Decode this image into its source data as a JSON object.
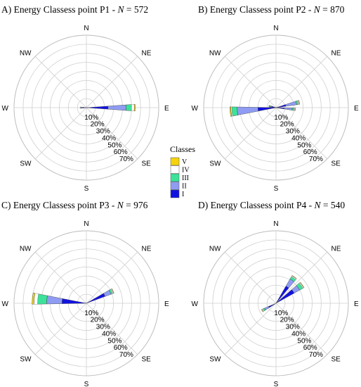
{
  "chart_data": {
    "type": "wind-rose",
    "directions": [
      "N",
      "NE",
      "E",
      "SE",
      "S",
      "SW",
      "W",
      "NW"
    ],
    "radial_ticks": [
      "10%",
      "20%",
      "30%",
      "40%",
      "50%",
      "60%",
      "70%"
    ],
    "radial_max": 80,
    "legend": {
      "title": "Classes",
      "classes": [
        {
          "label": "V",
          "color": "#f5d20c"
        },
        {
          "label": "IV",
          "color": "#ffffff"
        },
        {
          "label": "III",
          "color": "#3ce29a"
        },
        {
          "label": "II",
          "color": "#8f9cf2"
        },
        {
          "label": "I",
          "color": "#1212e0"
        }
      ]
    },
    "panels": [
      {
        "title_prefix": "A) Energy Classess point P1 - ",
        "title_n_sym": "N",
        "title_n_val": " = 572",
        "bins": [
          {
            "deg": 90,
            "width": 8,
            "I": 24,
            "II": 44,
            "III": 50,
            "IV": 53,
            "V": 54
          },
          {
            "deg": 270,
            "width": 14,
            "I": 4,
            "II": 6,
            "III": 6.5,
            "IV": 7,
            "V": 7
          }
        ]
      },
      {
        "title_prefix": "B) Energy Classess point P2 - ",
        "title_n_sym": "N",
        "title_n_val": " = 870",
        "bins": [
          {
            "deg": 77,
            "width": 10,
            "I": 11,
            "II": 23,
            "III": 25,
            "IV": 26,
            "V": 26.5
          },
          {
            "deg": 95,
            "width": 8,
            "I": 9,
            "II": 18,
            "III": 20,
            "IV": 21,
            "V": 21.5
          },
          {
            "deg": 282,
            "width": 14,
            "I": 5,
            "II": 6,
            "III": 7,
            "IV": 7.5,
            "V": 8
          },
          {
            "deg": 265,
            "width": 12,
            "I": 20,
            "II": 43,
            "III": 49,
            "IV": 50,
            "V": 51
          }
        ]
      },
      {
        "title_prefix": "C) Energy Classess point P3 - ",
        "title_n_sym": "N",
        "title_n_val": " = 976",
        "bins": [
          {
            "deg": 65,
            "width": 10,
            "I": 22,
            "II": 29,
            "III": 31,
            "IV": 32,
            "V": 32.5
          },
          {
            "deg": 275,
            "width": 12,
            "I": 27,
            "II": 44,
            "III": 54,
            "IV": 58,
            "V": 60
          }
        ]
      },
      {
        "title_prefix": "D) Energy Classess point P4 - ",
        "title_n_sym": "N",
        "title_n_val": " = 540",
        "bins": [
          {
            "deg": 35,
            "width": 10,
            "I": 22,
            "II": 31,
            "III": 34,
            "IV": 35,
            "V": 35.5
          },
          {
            "deg": 55,
            "width": 12,
            "I": 23,
            "II": 30,
            "III": 34,
            "IV": 35,
            "V": 35.5
          },
          {
            "deg": 242,
            "width": 10,
            "I": 9,
            "II": 14,
            "III": 16,
            "IV": 17,
            "V": 17.5
          }
        ]
      }
    ]
  }
}
